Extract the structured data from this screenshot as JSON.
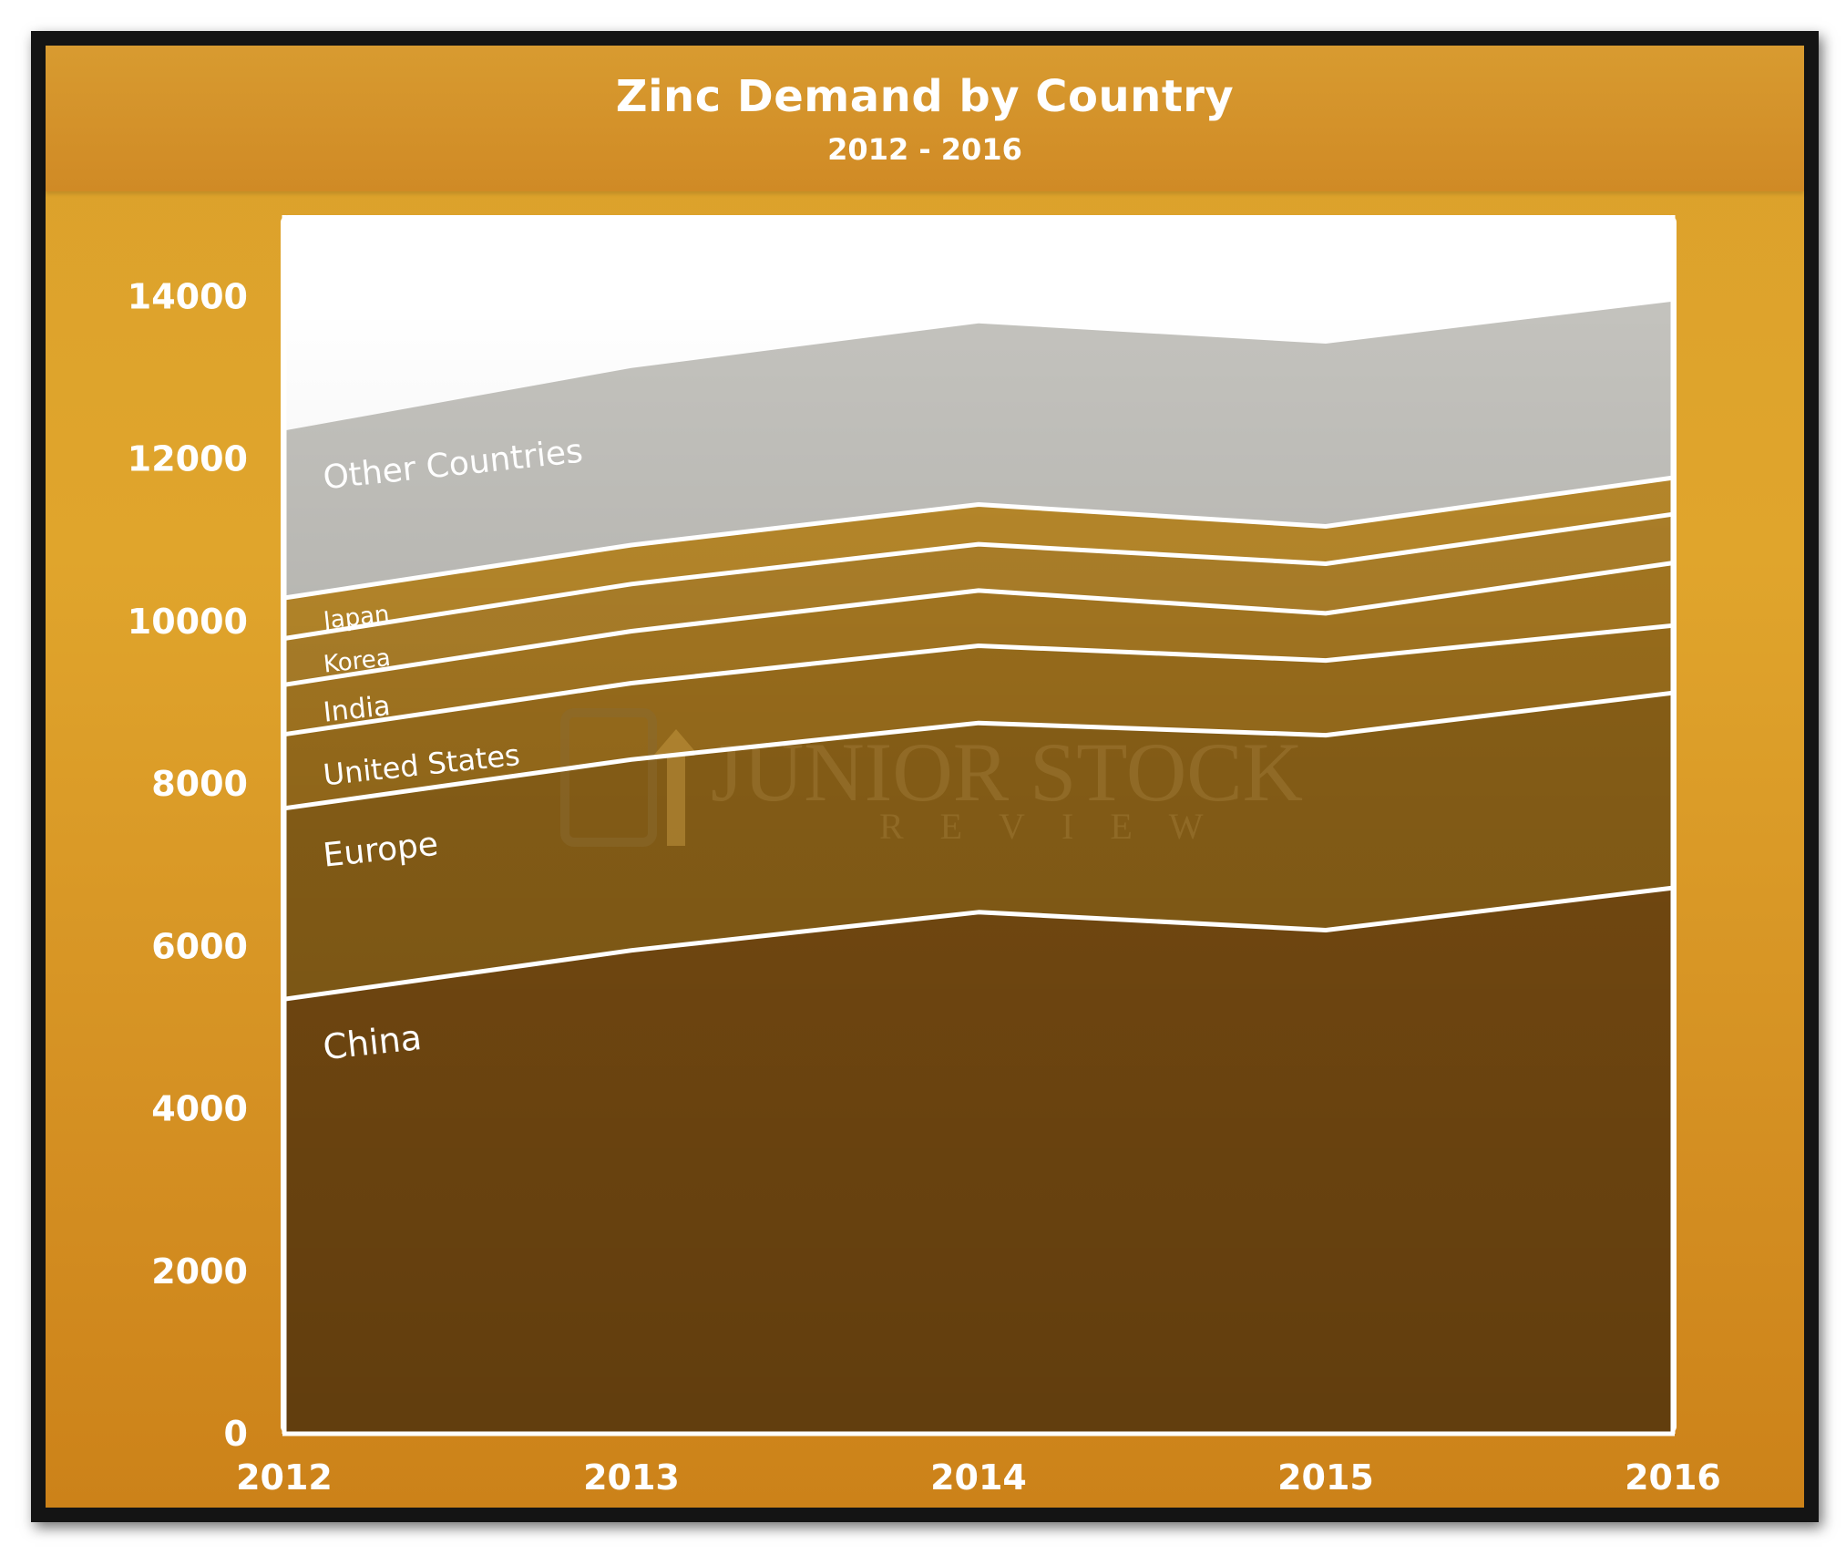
{
  "header": {
    "title": "Zinc Demand by Country",
    "subtitle": "2012 - 2016"
  },
  "watermark": {
    "line1": "JUNIOR STOCK",
    "line2": "REVIEW"
  },
  "colors": {
    "frame": "#141414",
    "panel": "#dca22b",
    "plot_bg": "#ffffff",
    "other_countries": "#c3c2bd",
    "divider": "#ffffff"
  },
  "chart_data": {
    "type": "area",
    "stacked": true,
    "title": "Zinc Demand by Country",
    "subtitle": "2012 - 2016",
    "xlabel": "",
    "ylabel": "",
    "x": [
      "2012",
      "2013",
      "2014",
      "2015",
      "2016"
    ],
    "ylim": [
      0,
      15000
    ],
    "yticks": [
      "0",
      "2000",
      "4000",
      "6000",
      "8000",
      "10000",
      "12000",
      "14000"
    ],
    "legend": "inline labels",
    "series": [
      {
        "name": "China",
        "values": [
          5350,
          5950,
          6420,
          6200,
          6720
        ],
        "color": "#7d4f12"
      },
      {
        "name": "Europe",
        "values": [
          2350,
          2350,
          2330,
          2400,
          2400
        ],
        "color": "#8f6418"
      },
      {
        "name": "United States",
        "values": [
          910,
          940,
          950,
          920,
          830
        ],
        "color": "#9f711d"
      },
      {
        "name": "India",
        "values": [
          610,
          640,
          680,
          580,
          770
        ],
        "color": "#a97a22"
      },
      {
        "name": "Korea",
        "values": [
          570,
          580,
          570,
          610,
          600
        ],
        "color": "#b0822a"
      },
      {
        "name": "Japan",
        "values": [
          500,
          480,
          490,
          460,
          450
        ],
        "color": "#ba8a2b"
      },
      {
        "name": "Other Countries",
        "values": [
          2060,
          2180,
          2230,
          2250,
          2170
        ],
        "color": "#c3c2bd"
      }
    ]
  }
}
